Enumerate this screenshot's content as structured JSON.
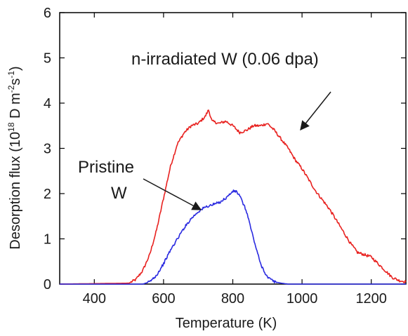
{
  "chart_data": {
    "type": "line",
    "title": "",
    "xlabel": "Temperature (K)",
    "ylabel_main": "Desorption flux (10",
    "ylabel_exp1": "18",
    "ylabel_mid": " D m",
    "ylabel_exp2": "-2",
    "ylabel_s": "s",
    "ylabel_exp3": "-1",
    "ylabel_end": ")",
    "xlim": [
      300,
      1300
    ],
    "ylim": [
      0,
      6
    ],
    "xticks": [
      400,
      600,
      800,
      1000,
      1200
    ],
    "xtick_labels": [
      "400",
      "600",
      "800",
      "1000",
      "1200"
    ],
    "yticks": [
      0,
      1,
      2,
      3,
      4,
      5,
      6
    ],
    "ytick_labels": [
      "0",
      "1",
      "2",
      "3",
      "4",
      "5",
      "6"
    ],
    "grid": false,
    "series": [
      {
        "name": "n-irradiated W (0.06 dpa)",
        "color": "#e8211f",
        "x": [
          300,
          500,
          520,
          540,
          560,
          580,
          600,
          620,
          640,
          660,
          680,
          700,
          720,
          730,
          740,
          760,
          780,
          800,
          820,
          840,
          860,
          880,
          900,
          920,
          940,
          960,
          980,
          1000,
          1020,
          1040,
          1060,
          1080,
          1100,
          1120,
          1140,
          1160,
          1180,
          1200,
          1220,
          1240,
          1260,
          1280,
          1300
        ],
        "y": [
          0.0,
          0.02,
          0.1,
          0.3,
          0.65,
          1.2,
          1.9,
          2.6,
          3.1,
          3.35,
          3.5,
          3.55,
          3.7,
          3.85,
          3.6,
          3.55,
          3.6,
          3.5,
          3.35,
          3.4,
          3.5,
          3.5,
          3.55,
          3.4,
          3.2,
          3.0,
          2.75,
          2.55,
          2.3,
          2.05,
          1.85,
          1.65,
          1.4,
          1.15,
          0.9,
          0.7,
          0.65,
          0.6,
          0.45,
          0.3,
          0.15,
          0.08,
          0.05
        ]
      },
      {
        "name": "Pristine W",
        "color": "#2a2ae0",
        "x": [
          300,
          540,
          560,
          580,
          600,
          620,
          640,
          660,
          680,
          700,
          720,
          740,
          760,
          780,
          800,
          810,
          820,
          840,
          860,
          880,
          900,
          920,
          940,
          960,
          1300
        ],
        "y": [
          0.0,
          0.0,
          0.05,
          0.2,
          0.45,
          0.75,
          1.0,
          1.25,
          1.45,
          1.6,
          1.7,
          1.75,
          1.8,
          1.9,
          2.05,
          2.05,
          1.95,
          1.6,
          1.0,
          0.45,
          0.15,
          0.05,
          0.02,
          0.0,
          0.0
        ]
      }
    ],
    "annotations": [
      {
        "label": "n-irradiated W (0.06 dpa)"
      },
      {
        "label_line1": "Pristine",
        "label_line2": "W"
      }
    ]
  }
}
